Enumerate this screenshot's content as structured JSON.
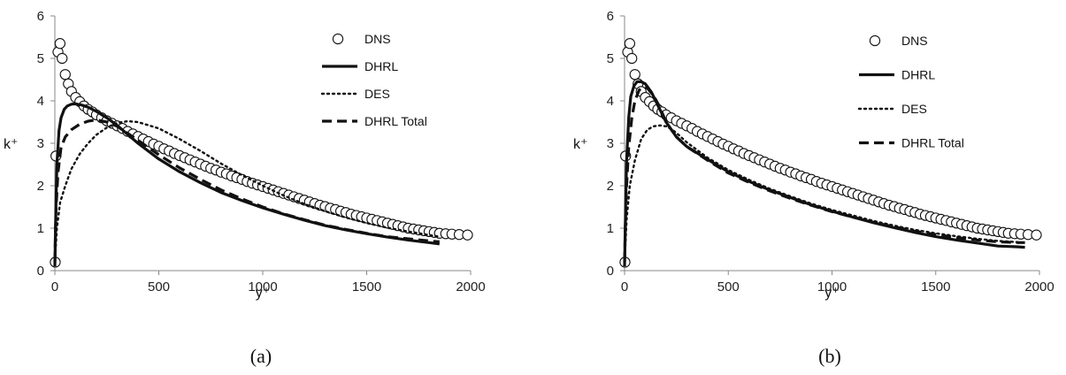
{
  "chart_data": [
    {
      "type": "line",
      "caption": "(a)",
      "xlabel": "y⁺",
      "ylabel": "k⁺",
      "xlim": [
        0,
        2000
      ],
      "ylim": [
        0,
        6
      ],
      "xticks": [
        0,
        500,
        1000,
        1500,
        2000
      ],
      "yticks": [
        0,
        1,
        2,
        3,
        4,
        5,
        6
      ],
      "legend_position": "top-right",
      "series": [
        {
          "name": "DNS",
          "style": "circles",
          "x": [
            2,
            5,
            15,
            25,
            35,
            50,
            65,
            80,
            100,
            120,
            140,
            160,
            180,
            200,
            225,
            250,
            275,
            300,
            325,
            350,
            375,
            400,
            425,
            450,
            475,
            500,
            525,
            550,
            575,
            600,
            625,
            650,
            675,
            700,
            725,
            750,
            775,
            800,
            825,
            850,
            875,
            900,
            925,
            950,
            975,
            1000,
            1025,
            1050,
            1075,
            1100,
            1125,
            1150,
            1175,
            1200,
            1225,
            1250,
            1275,
            1300,
            1325,
            1350,
            1375,
            1400,
            1425,
            1450,
            1475,
            1500,
            1525,
            1550,
            1575,
            1600,
            1625,
            1650,
            1675,
            1700,
            1725,
            1750,
            1775,
            1800,
            1825,
            1850,
            1880,
            1910,
            1945,
            1985
          ],
          "y": [
            0.2,
            2.7,
            5.15,
            5.35,
            5.0,
            4.62,
            4.4,
            4.22,
            4.08,
            3.98,
            3.88,
            3.8,
            3.74,
            3.67,
            3.6,
            3.53,
            3.47,
            3.41,
            3.35,
            3.28,
            3.22,
            3.16,
            3.1,
            3.04,
            2.98,
            2.93,
            2.87,
            2.82,
            2.76,
            2.71,
            2.66,
            2.61,
            2.56,
            2.51,
            2.46,
            2.41,
            2.37,
            2.32,
            2.28,
            2.23,
            2.19,
            2.15,
            2.1,
            2.06,
            2.02,
            1.98,
            1.94,
            1.9,
            1.86,
            1.82,
            1.78,
            1.74,
            1.7,
            1.66,
            1.62,
            1.58,
            1.54,
            1.51,
            1.47,
            1.44,
            1.4,
            1.37,
            1.33,
            1.3,
            1.27,
            1.24,
            1.21,
            1.18,
            1.15,
            1.12,
            1.09,
            1.06,
            1.03,
            1.0,
            0.98,
            0.96,
            0.94,
            0.92,
            0.9,
            0.88,
            0.87,
            0.86,
            0.85,
            0.84
          ]
        },
        {
          "name": "DHRL",
          "style": "solid",
          "x": [
            0,
            5,
            10,
            20,
            30,
            45,
            60,
            80,
            100,
            130,
            160,
            200,
            250,
            300,
            400,
            500,
            600,
            700,
            800,
            900,
            1000,
            1100,
            1200,
            1300,
            1400,
            1500,
            1600,
            1700,
            1800,
            1850
          ],
          "y": [
            0.1,
            1.5,
            2.5,
            3.3,
            3.6,
            3.8,
            3.88,
            3.92,
            3.93,
            3.9,
            3.85,
            3.75,
            3.6,
            3.42,
            3.0,
            2.63,
            2.33,
            2.07,
            1.84,
            1.65,
            1.48,
            1.33,
            1.19,
            1.06,
            0.96,
            0.87,
            0.79,
            0.72,
            0.66,
            0.63
          ]
        },
        {
          "name": "DES",
          "style": "dotted",
          "x": [
            0,
            10,
            25,
            50,
            80,
            120,
            160,
            200,
            250,
            300,
            350,
            400,
            500,
            600,
            700,
            800,
            900,
            1000,
            1100,
            1200,
            1300,
            1400,
            1500,
            1600,
            1700,
            1800,
            1850
          ],
          "y": [
            0.2,
            1.0,
            1.6,
            2.0,
            2.4,
            2.75,
            3.0,
            3.2,
            3.37,
            3.48,
            3.52,
            3.5,
            3.35,
            3.1,
            2.82,
            2.52,
            2.25,
            2.0,
            1.77,
            1.57,
            1.4,
            1.25,
            1.12,
            1.01,
            0.92,
            0.84,
            0.8
          ]
        },
        {
          "name": "DHRL Total",
          "style": "dashed",
          "x": [
            0,
            5,
            15,
            30,
            50,
            80,
            120,
            160,
            200,
            250,
            300,
            400,
            500,
            600,
            700,
            800,
            900,
            1000,
            1100,
            1200,
            1300,
            1400,
            1500,
            1600,
            1700,
            1800,
            1850
          ],
          "y": [
            0.2,
            1.4,
            2.3,
            2.9,
            3.15,
            3.32,
            3.45,
            3.52,
            3.55,
            3.5,
            3.4,
            3.07,
            2.73,
            2.42,
            2.15,
            1.9,
            1.69,
            1.5,
            1.34,
            1.2,
            1.07,
            0.97,
            0.88,
            0.8,
            0.75,
            0.7,
            0.68
          ]
        }
      ]
    },
    {
      "type": "line",
      "caption": "(b)",
      "xlabel": "y⁺",
      "ylabel": "k⁺",
      "xlim": [
        0,
        2000
      ],
      "ylim": [
        0,
        6
      ],
      "xticks": [
        0,
        500,
        1000,
        1500,
        2000
      ],
      "yticks": [
        0,
        1,
        2,
        3,
        4,
        5,
        6
      ],
      "legend_position": "top-right",
      "series": [
        {
          "name": "DNS",
          "style": "circles",
          "x": [
            2,
            5,
            15,
            25,
            35,
            50,
            65,
            80,
            100,
            120,
            140,
            160,
            180,
            200,
            225,
            250,
            275,
            300,
            325,
            350,
            375,
            400,
            425,
            450,
            475,
            500,
            525,
            550,
            575,
            600,
            625,
            650,
            675,
            700,
            725,
            750,
            775,
            800,
            825,
            850,
            875,
            900,
            925,
            950,
            975,
            1000,
            1025,
            1050,
            1075,
            1100,
            1125,
            1150,
            1175,
            1200,
            1225,
            1250,
            1275,
            1300,
            1325,
            1350,
            1375,
            1400,
            1425,
            1450,
            1475,
            1500,
            1525,
            1550,
            1575,
            1600,
            1625,
            1650,
            1675,
            1700,
            1725,
            1750,
            1775,
            1800,
            1825,
            1850,
            1880,
            1910,
            1945,
            1985
          ],
          "y": [
            0.2,
            2.7,
            5.15,
            5.35,
            5.0,
            4.62,
            4.4,
            4.22,
            4.08,
            3.98,
            3.88,
            3.8,
            3.74,
            3.67,
            3.6,
            3.53,
            3.47,
            3.41,
            3.35,
            3.28,
            3.22,
            3.16,
            3.1,
            3.04,
            2.98,
            2.93,
            2.87,
            2.82,
            2.76,
            2.71,
            2.66,
            2.61,
            2.56,
            2.51,
            2.46,
            2.41,
            2.37,
            2.32,
            2.28,
            2.23,
            2.19,
            2.15,
            2.1,
            2.06,
            2.02,
            1.98,
            1.94,
            1.9,
            1.86,
            1.82,
            1.78,
            1.74,
            1.7,
            1.66,
            1.62,
            1.58,
            1.54,
            1.51,
            1.47,
            1.44,
            1.4,
            1.37,
            1.33,
            1.3,
            1.27,
            1.24,
            1.21,
            1.18,
            1.15,
            1.12,
            1.09,
            1.06,
            1.03,
            1.0,
            0.98,
            0.96,
            0.94,
            0.92,
            0.9,
            0.88,
            0.87,
            0.86,
            0.85,
            0.84
          ]
        },
        {
          "name": "DHRL",
          "style": "solid",
          "x": [
            0,
            5,
            10,
            20,
            30,
            45,
            60,
            80,
            100,
            130,
            160,
            200,
            250,
            300,
            400,
            500,
            600,
            700,
            800,
            900,
            1000,
            1100,
            1200,
            1300,
            1400,
            1500,
            1600,
            1700,
            1800,
            1900,
            1930
          ],
          "y": [
            0.1,
            1.5,
            2.6,
            3.6,
            4.1,
            4.35,
            4.45,
            4.45,
            4.4,
            4.2,
            3.9,
            3.5,
            3.15,
            2.92,
            2.62,
            2.33,
            2.1,
            1.9,
            1.72,
            1.55,
            1.4,
            1.26,
            1.13,
            1.01,
            0.9,
            0.8,
            0.72,
            0.65,
            0.58,
            0.56,
            0.55
          ]
        },
        {
          "name": "DES",
          "style": "dotted",
          "x": [
            0,
            10,
            25,
            50,
            80,
            110,
            140,
            170,
            200,
            230,
            260,
            300,
            400,
            500,
            600,
            700,
            800,
            900,
            1000,
            1100,
            1200,
            1300,
            1400,
            1500,
            1600,
            1700,
            1800,
            1900,
            1930
          ],
          "y": [
            0.2,
            1.2,
            2.0,
            2.6,
            3.1,
            3.32,
            3.4,
            3.42,
            3.4,
            3.32,
            3.2,
            3.02,
            2.66,
            2.37,
            2.14,
            1.93,
            1.75,
            1.58,
            1.43,
            1.3,
            1.17,
            1.06,
            0.96,
            0.88,
            0.81,
            0.75,
            0.7,
            0.67,
            0.66
          ]
        },
        {
          "name": "DHRL Total",
          "style": "dashed",
          "x": [
            0,
            5,
            10,
            20,
            35,
            50,
            70,
            90,
            110,
            140,
            170,
            200,
            250,
            300,
            400,
            500,
            600,
            700,
            800,
            900,
            1000,
            1100,
            1200,
            1300,
            1400,
            1500,
            1600,
            1700,
            1800,
            1900,
            1930
          ],
          "y": [
            0.2,
            1.3,
            2.0,
            2.9,
            3.6,
            4.0,
            4.25,
            4.33,
            4.3,
            4.12,
            3.85,
            3.5,
            3.15,
            2.92,
            2.6,
            2.3,
            2.08,
            1.88,
            1.7,
            1.54,
            1.39,
            1.26,
            1.14,
            1.03,
            0.93,
            0.85,
            0.78,
            0.72,
            0.68,
            0.66,
            0.66
          ]
        }
      ]
    }
  ]
}
